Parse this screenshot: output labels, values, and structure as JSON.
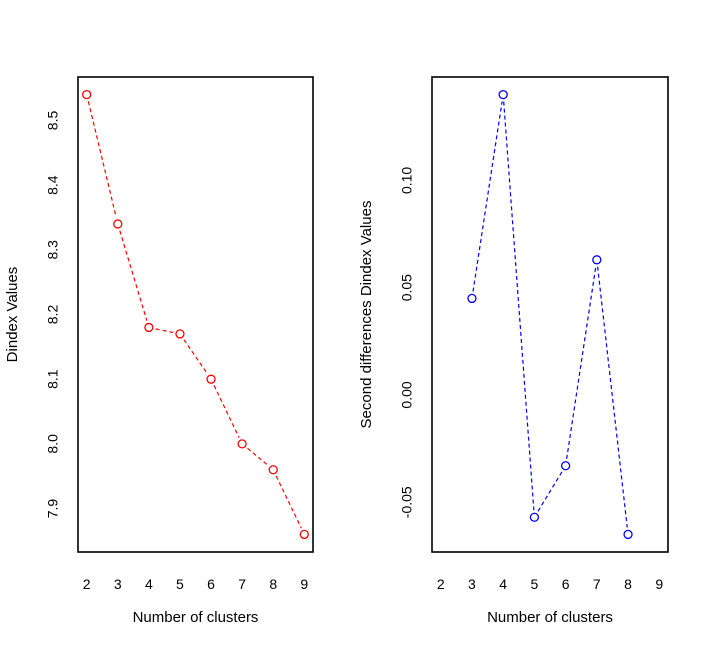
{
  "page": {
    "background": "#ffffff",
    "description": "R graphics device output with two line plots side by side"
  },
  "chart_data": [
    {
      "type": "line",
      "name": "dindex-plot",
      "title": "",
      "xlabel": "Number of clusters",
      "ylabel": "Dindex Values",
      "x": [
        2,
        3,
        4,
        5,
        6,
        7,
        8,
        9
      ],
      "values": [
        8.54,
        8.34,
        8.18,
        8.17,
        8.1,
        8.0,
        7.96,
        7.86
      ],
      "xticks": [
        2,
        3,
        4,
        5,
        6,
        7,
        8,
        9
      ],
      "xtick_labels": [
        "2",
        "3",
        "4",
        "5",
        "6",
        "7",
        "8",
        "9"
      ],
      "yticks": [
        7.9,
        8.0,
        8.1,
        8.2,
        8.3,
        8.4,
        8.5
      ],
      "ytick_labels": [
        "7.9",
        "8.0",
        "8.1",
        "8.2",
        "8.3",
        "8.4",
        "8.5"
      ],
      "xlim": [
        1.72,
        9.28
      ],
      "ylim": [
        7.8328,
        8.5672
      ],
      "line_color": "#ff0000",
      "line_style": "dashed",
      "marker": "open-circle",
      "grid": false,
      "legend": null
    },
    {
      "type": "line",
      "name": "second-differences-plot",
      "title": "",
      "xlabel": "Number of clusters",
      "ylabel": "Second differences Dindex Values",
      "x": [
        3,
        4,
        5,
        6,
        7,
        8
      ],
      "values": [
        0.045,
        0.14,
        -0.057,
        -0.033,
        0.063,
        -0.065
      ],
      "xticks": [
        2,
        3,
        4,
        5,
        6,
        7,
        8,
        9
      ],
      "xtick_labels": [
        "2",
        "3",
        "4",
        "5",
        "6",
        "7",
        "8",
        "9"
      ],
      "yticks": [
        -0.05,
        0.0,
        0.05,
        0.1
      ],
      "ytick_labels": [
        "-0.05",
        "0.00",
        "0.05",
        "0.10"
      ],
      "xlim": [
        1.72,
        9.28
      ],
      "ylim": [
        -0.0732,
        0.1482
      ],
      "line_color": "#0000ff",
      "line_style": "dashed",
      "marker": "open-circle",
      "grid": false,
      "legend": null
    }
  ]
}
